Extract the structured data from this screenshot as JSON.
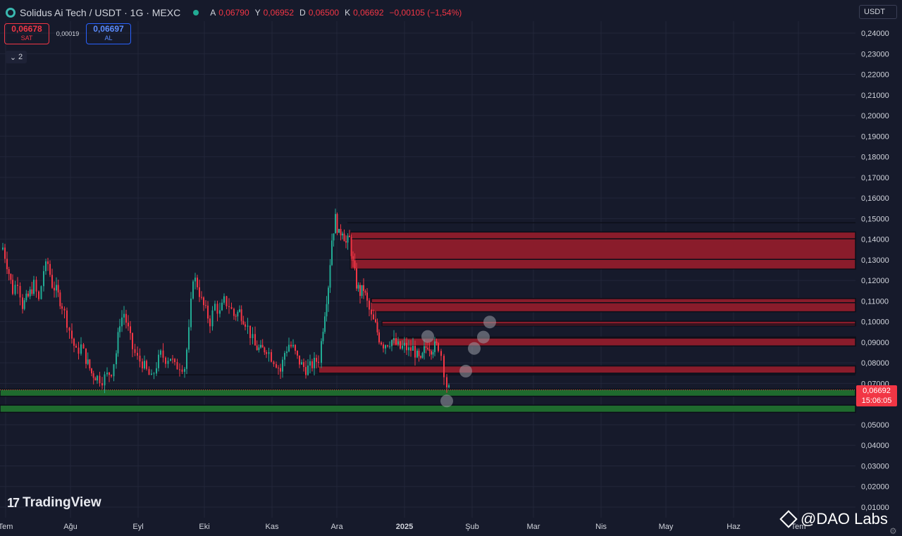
{
  "header": {
    "symbol": "Solidus Ai Tech / USDT · 1G · MEXC",
    "ohlc": [
      {
        "key": "A",
        "value": "0,06790"
      },
      {
        "key": "Y",
        "value": "0,06952"
      },
      {
        "key": "D",
        "value": "0,06500"
      },
      {
        "key": "K",
        "value": "0,06692"
      }
    ],
    "change": "−0,00105 (−1,54%)"
  },
  "trade": {
    "sell_price": "0,06678",
    "sell_label": "SAT",
    "spread": "0,00019",
    "buy_price": "0,06697",
    "buy_label": "AL"
  },
  "indicators_toggle": "2",
  "currency": "USDT",
  "current_price": {
    "price": "0,06692",
    "countdown": "15:06:05"
  },
  "branding": {
    "tradingview": "TradingView",
    "watermark": "@DAO Labs"
  },
  "colors": {
    "up": "#22ab94",
    "down": "#f23645",
    "red_zone": "#8a1c2b",
    "green_zone": "#1f6b2e",
    "bg": "#161a2b"
  },
  "chart_data": {
    "type": "candlestick",
    "x_axis_labels": [
      "Tem",
      "Ağu",
      "Eyl",
      "Eki",
      "Kas",
      "Ara",
      "2025",
      "Şub",
      "Mar",
      "Nis",
      "May",
      "Haz",
      "Tem"
    ],
    "y_axis": {
      "ticks": [
        "0,24000",
        "0,23000",
        "0,22000",
        "0,21000",
        "0,20000",
        "0,19000",
        "0,18000",
        "0,17000",
        "0,16000",
        "0,15000",
        "0,14000",
        "0,13000",
        "0,12000",
        "0,11000",
        "0,10000",
        "0,09000",
        "0,08000",
        "0,07000",
        "0,05000",
        "0,04000",
        "0,03000",
        "0,02000",
        "0,01000"
      ],
      "range": [
        0.01,
        0.24
      ]
    },
    "price_path": [
      [
        0,
        0.135
      ],
      [
        4,
        0.136
      ],
      [
        10,
        0.128
      ],
      [
        18,
        0.115
      ],
      [
        25,
        0.12
      ],
      [
        32,
        0.108
      ],
      [
        40,
        0.112
      ],
      [
        48,
        0.118
      ],
      [
        55,
        0.11
      ],
      [
        62,
        0.125
      ],
      [
        68,
        0.128
      ],
      [
        74,
        0.118
      ],
      [
        80,
        0.115
      ],
      [
        88,
        0.108
      ],
      [
        95,
        0.1
      ],
      [
        102,
        0.092
      ],
      [
        108,
        0.085
      ],
      [
        115,
        0.088
      ],
      [
        122,
        0.082
      ],
      [
        130,
        0.075
      ],
      [
        138,
        0.073
      ],
      [
        145,
        0.072
      ],
      [
        152,
        0.074
      ],
      [
        158,
        0.076
      ],
      [
        165,
        0.085
      ],
      [
        170,
        0.1
      ],
      [
        176,
        0.104
      ],
      [
        182,
        0.096
      ],
      [
        188,
        0.087
      ],
      [
        195,
        0.082
      ],
      [
        202,
        0.08
      ],
      [
        208,
        0.076
      ],
      [
        215,
        0.072
      ],
      [
        222,
        0.079
      ],
      [
        228,
        0.084
      ],
      [
        235,
        0.082
      ],
      [
        242,
        0.083
      ],
      [
        248,
        0.078
      ],
      [
        255,
        0.079
      ],
      [
        262,
        0.078
      ],
      [
        268,
        0.095
      ],
      [
        274,
        0.122
      ],
      [
        280,
        0.118
      ],
      [
        286,
        0.11
      ],
      [
        292,
        0.105
      ],
      [
        298,
        0.1
      ],
      [
        305,
        0.108
      ],
      [
        312,
        0.104
      ],
      [
        318,
        0.11
      ],
      [
        325,
        0.108
      ],
      [
        332,
        0.103
      ],
      [
        340,
        0.105
      ],
      [
        348,
        0.1
      ],
      [
        355,
        0.094
      ],
      [
        362,
        0.088
      ],
      [
        370,
        0.086
      ],
      [
        378,
        0.087
      ],
      [
        385,
        0.083
      ],
      [
        392,
        0.08
      ],
      [
        398,
        0.076
      ],
      [
        404,
        0.085
      ],
      [
        410,
        0.089
      ],
      [
        416,
        0.087
      ],
      [
        422,
        0.082
      ],
      [
        428,
        0.079
      ],
      [
        434,
        0.077
      ],
      [
        440,
        0.078
      ],
      [
        446,
        0.08
      ],
      [
        452,
        0.082
      ],
      [
        456,
        0.09
      ],
      [
        461,
        0.105
      ],
      [
        466,
        0.118
      ],
      [
        471,
        0.14
      ],
      [
        476,
        0.15
      ],
      [
        481,
        0.142
      ],
      [
        486,
        0.145
      ],
      [
        491,
        0.138
      ],
      [
        496,
        0.14
      ],
      [
        501,
        0.128
      ],
      [
        506,
        0.118
      ],
      [
        511,
        0.114
      ],
      [
        516,
        0.116
      ],
      [
        521,
        0.109
      ],
      [
        527,
        0.102
      ],
      [
        533,
        0.098
      ],
      [
        538,
        0.092
      ],
      [
        544,
        0.089
      ],
      [
        550,
        0.09
      ],
      [
        556,
        0.091
      ],
      [
        562,
        0.089
      ],
      [
        568,
        0.087
      ],
      [
        574,
        0.088
      ],
      [
        580,
        0.086
      ],
      [
        586,
        0.087
      ],
      [
        592,
        0.083
      ],
      [
        597,
        0.08
      ],
      [
        602,
        0.086
      ],
      [
        607,
        0.089
      ],
      [
        612,
        0.087
      ],
      [
        617,
        0.088
      ],
      [
        622,
        0.088
      ],
      [
        626,
        0.084
      ],
      [
        630,
        0.076
      ],
      [
        634,
        0.069
      ],
      [
        637,
        0.0669
      ]
    ],
    "resistance_zones": [
      {
        "from": 0.1255,
        "to": 0.1435
      },
      {
        "from": 0.1048,
        "to": 0.1112
      },
      {
        "from": 0.098,
        "to": 0.1002
      },
      {
        "from": 0.0882,
        "to": 0.0925
      },
      {
        "from": 0.075,
        "to": 0.0785
      }
    ],
    "support_zones": [
      {
        "from": 0.0638,
        "to": 0.0672
      },
      {
        "from": 0.056,
        "to": 0.0595
      }
    ],
    "guide_lines": [
      0.148,
      0.1302,
      0.1402,
      0.1092,
      0.0988,
      0.092,
      0.0742
    ],
    "projection_points": [
      {
        "day": 634,
        "price": 0.0615
      },
      {
        "day": 661,
        "price": 0.076
      },
      {
        "day": 673,
        "price": 0.087
      },
      {
        "day": 686,
        "price": 0.0925
      },
      {
        "day": 695,
        "price": 0.0998
      },
      {
        "day": 607,
        "price": 0.0928
      }
    ]
  }
}
